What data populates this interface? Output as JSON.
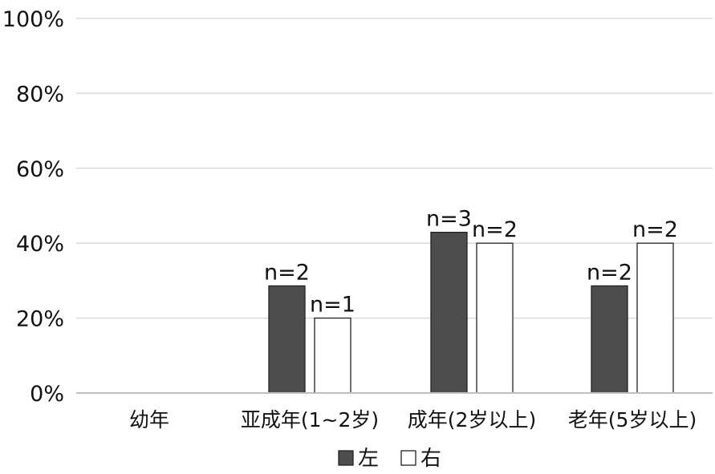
{
  "chart_data": {
    "type": "bar",
    "title": "",
    "xlabel": "",
    "ylabel": "",
    "categories": [
      "幼年",
      "亚成年(1~2岁)",
      "成年(2岁以上)",
      "老年(5岁以上)"
    ],
    "series": [
      {
        "name": "左",
        "color": "#4d4d4d",
        "values": [
          null,
          28.6,
          42.9,
          28.6
        ],
        "labels": [
          "",
          "n=2",
          "n=3",
          "n=2"
        ]
      },
      {
        "name": "右",
        "color": "#ffffff",
        "values": [
          null,
          20,
          40,
          40
        ],
        "labels": [
          "",
          "n=1",
          "n=2",
          "n=2"
        ]
      }
    ],
    "ylim": [
      0,
      100
    ],
    "yticks": [
      "0%",
      "20%",
      "40%",
      "60%",
      "80%",
      "100%"
    ],
    "grid": true,
    "legend_position": "bottom"
  }
}
